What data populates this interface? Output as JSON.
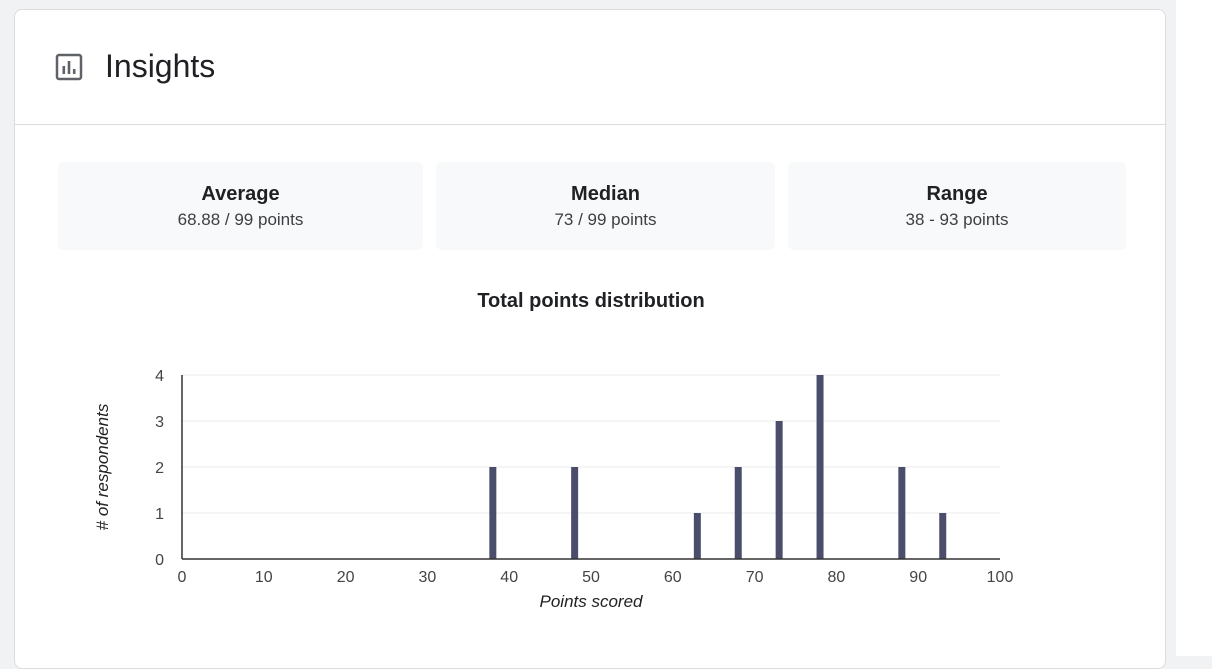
{
  "header": {
    "title": "Insights",
    "icon": "bar-chart-icon"
  },
  "stats": [
    {
      "label": "Average",
      "value": "68.88 / 99 points"
    },
    {
      "label": "Median",
      "value": "73 / 99 points"
    },
    {
      "label": "Range",
      "value": "38 - 93 points"
    }
  ],
  "chart_data": {
    "type": "bar",
    "title": "Total points distribution",
    "xlabel": "Points scored",
    "ylabel": "# of respondents",
    "xlim": [
      0,
      100
    ],
    "ylim": [
      0,
      4
    ],
    "xticks": [
      0,
      10,
      20,
      30,
      40,
      50,
      60,
      70,
      80,
      90,
      100
    ],
    "yticks": [
      0,
      1,
      2,
      3,
      4
    ],
    "grid": true,
    "legend": "none",
    "bar_color": "#4a4e6a",
    "x": [
      38,
      48,
      63,
      68,
      73,
      78,
      88,
      93
    ],
    "values": [
      2,
      2,
      1,
      2,
      3,
      4,
      2,
      1
    ]
  }
}
